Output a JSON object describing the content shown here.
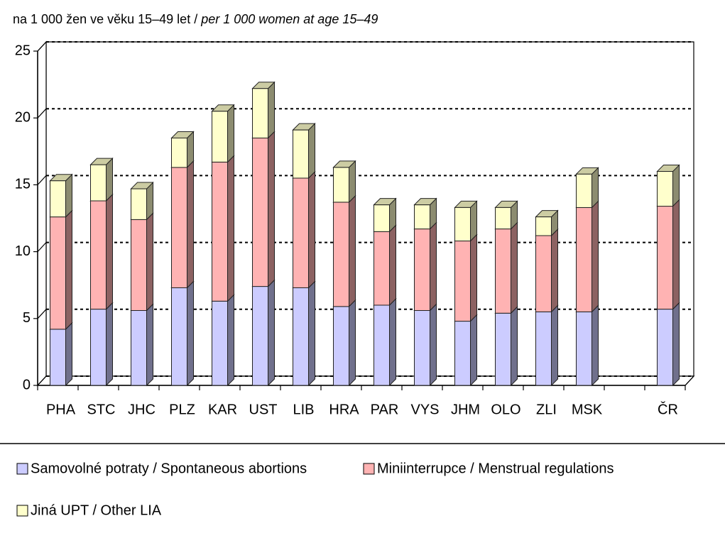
{
  "chart_data": {
    "type": "bar3d_stacked",
    "subtitle": [
      "na 1 000 žen ve věku 15–49 let / ",
      "per 1 000 women at age 15–49"
    ],
    "categories": [
      "PHA",
      "STC",
      "JHC",
      "PLZ",
      "KAR",
      "UST",
      "LIB",
      "HRA",
      "PAR",
      "VYS",
      "JHM",
      "OLO",
      "ZLI",
      "MSK",
      null,
      "ČR"
    ],
    "series": [
      {
        "name": "Samovolné potraty / Spontaneous abortions",
        "color": "#ccccff",
        "values": [
          4.2,
          5.7,
          5.6,
          7.3,
          6.3,
          7.4,
          7.3,
          5.9,
          6.0,
          5.6,
          4.8,
          5.4,
          5.5,
          5.5,
          null,
          5.7
        ]
      },
      {
        "name": "Miniinterrupce / Menstrual regulations",
        "color": "#ffb3b3",
        "values": [
          8.4,
          8.1,
          6.8,
          9.0,
          10.4,
          11.1,
          8.2,
          7.8,
          5.5,
          6.1,
          6.0,
          6.3,
          5.7,
          7.8,
          null,
          7.7
        ]
      },
      {
        "name": "Jiná UPT / Other LIA",
        "color": "#ffffcc",
        "values": [
          2.7,
          2.7,
          2.3,
          2.2,
          3.8,
          3.7,
          3.6,
          2.6,
          2.0,
          1.8,
          2.5,
          1.6,
          1.4,
          2.5,
          null,
          2.6
        ]
      }
    ],
    "ylim": [
      0,
      25
    ],
    "yticks": [
      0,
      5,
      10,
      15,
      20,
      25
    ],
    "grid": true
  }
}
